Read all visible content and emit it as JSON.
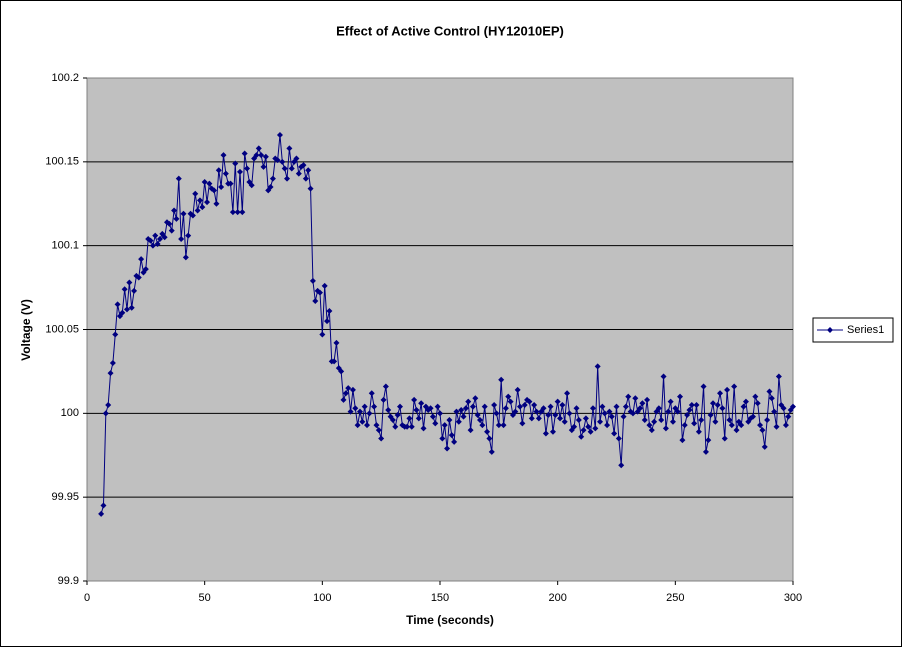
{
  "chart_data": {
    "type": "line",
    "title": "Effect of Active Control (HY12010EP)",
    "x_label": "Time (seconds)",
    "y_label": "Voltage (V)",
    "xlim": [
      0,
      300
    ],
    "xticks": [
      0,
      50,
      100,
      150,
      200,
      250,
      300
    ],
    "ylim": [
      99.9,
      100.2
    ],
    "yticks": [
      99.9,
      99.95,
      100,
      100.05,
      100.1,
      100.15,
      100.2
    ],
    "grid": true,
    "legend": "right",
    "x": [
      6,
      7,
      8,
      9,
      10,
      11,
      12,
      13,
      14,
      15,
      16,
      17,
      18,
      19,
      20,
      21,
      22,
      23,
      24,
      25,
      26,
      27,
      28,
      29,
      30,
      31,
      32,
      33,
      34,
      35,
      36,
      37,
      38,
      39,
      40,
      41,
      42,
      43,
      44,
      45,
      46,
      47,
      48,
      49,
      50,
      51,
      52,
      53,
      54,
      55,
      56,
      57,
      58,
      59,
      60,
      61,
      62,
      63,
      64,
      65,
      66,
      67,
      68,
      69,
      70,
      71,
      72,
      73,
      74,
      75,
      76,
      77,
      78,
      79,
      80,
      81,
      82,
      83,
      84,
      85,
      86,
      87,
      88,
      89,
      90,
      91,
      92,
      93,
      94,
      95,
      96,
      97,
      98,
      99,
      100,
      101,
      102,
      103,
      104,
      105,
      106,
      107,
      108,
      109,
      110,
      111,
      112,
      113,
      114,
      115,
      116,
      117,
      118,
      119,
      120,
      121,
      122,
      123,
      124,
      125,
      126,
      127,
      128,
      129,
      130,
      131,
      132,
      133,
      134,
      135,
      136,
      137,
      138,
      139,
      140,
      141,
      142,
      143,
      144,
      145,
      146,
      147,
      148,
      149,
      150,
      151,
      152,
      153,
      154,
      155,
      156,
      157,
      158,
      159,
      160,
      161,
      162,
      163,
      164,
      165,
      166,
      167,
      168,
      169,
      170,
      171,
      172,
      173,
      174,
      175,
      176,
      177,
      178,
      179,
      180,
      181,
      182,
      183,
      184,
      185,
      186,
      187,
      188,
      189,
      190,
      191,
      192,
      193,
      194,
      195,
      196,
      197,
      198,
      199,
      200,
      201,
      202,
      203,
      204,
      205,
      206,
      207,
      208,
      209,
      210,
      211,
      212,
      213,
      214,
      215,
      216,
      217,
      218,
      219,
      220,
      221,
      222,
      223,
      224,
      225,
      226,
      227,
      228,
      229,
      230,
      231,
      232,
      233,
      234,
      235,
      236,
      237,
      238,
      239,
      240,
      241,
      242,
      243,
      244,
      245,
      246,
      247,
      248,
      249,
      250,
      251,
      252,
      253,
      254,
      255,
      256,
      257,
      258,
      259,
      260,
      261,
      262,
      263,
      264,
      265,
      266,
      267,
      268,
      269,
      270,
      271,
      272,
      273,
      274,
      275,
      276,
      277,
      278,
      279,
      280,
      281,
      282,
      283,
      284,
      285,
      286,
      287,
      288,
      289,
      290,
      291,
      292,
      293,
      294,
      295,
      296,
      297,
      298,
      299,
      300
    ],
    "series": [
      {
        "name": "Series1",
        "color": "#000080",
        "values": [
          99.94,
          99.945,
          100.0,
          100.005,
          100.024,
          100.03,
          100.047,
          100.065,
          100.058,
          100.06,
          100.074,
          100.062,
          100.078,
          100.063,
          100.073,
          100.082,
          100.081,
          100.092,
          100.084,
          100.086,
          100.104,
          100.103,
          100.1,
          100.106,
          100.101,
          100.104,
          100.107,
          100.105,
          100.114,
          100.113,
          100.109,
          100.121,
          100.116,
          100.14,
          100.104,
          100.119,
          100.093,
          100.106,
          100.119,
          100.118,
          100.131,
          100.121,
          100.127,
          100.123,
          100.138,
          100.126,
          100.137,
          100.134,
          100.133,
          100.125,
          100.145,
          100.135,
          100.154,
          100.143,
          100.137,
          100.137,
          100.12,
          100.149,
          100.12,
          100.144,
          100.12,
          100.155,
          100.146,
          100.138,
          100.136,
          100.152,
          100.154,
          100.158,
          100.154,
          100.147,
          100.153,
          100.133,
          100.135,
          100.14,
          100.152,
          100.151,
          100.166,
          100.15,
          100.146,
          100.14,
          100.158,
          100.146,
          100.15,
          100.152,
          100.143,
          100.147,
          100.148,
          100.14,
          100.145,
          100.134,
          100.079,
          100.067,
          100.073,
          100.072,
          100.047,
          100.076,
          100.055,
          100.061,
          100.031,
          100.031,
          100.042,
          100.027,
          100.025,
          100.008,
          100.012,
          100.015,
          100.001,
          100.014,
          100.003,
          99.993,
          100.001,
          99.995,
          100.004,
          99.993,
          100.0,
          100.012,
          100.004,
          99.993,
          99.99,
          99.985,
          100.008,
          100.016,
          100.002,
          99.998,
          99.996,
          99.992,
          99.999,
          100.004,
          99.993,
          99.992,
          99.992,
          99.997,
          99.992,
          100.008,
          100.002,
          99.997,
          100.006,
          99.991,
          100.004,
          100.002,
          100.003,
          99.998,
          99.994,
          100.004,
          100.0,
          99.985,
          99.993,
          99.979,
          99.996,
          99.987,
          99.983,
          100.001,
          99.995,
          100.002,
          99.998,
          100.003,
          100.007,
          99.99,
          100.004,
          100.009,
          99.999,
          99.996,
          99.993,
          100.004,
          99.989,
          99.985,
          99.977,
          100.005,
          100.0,
          99.993,
          100.02,
          99.993,
          100.003,
          100.01,
          100.007,
          99.999,
          100.001,
          100.014,
          100.004,
          99.994,
          100.005,
          100.008,
          100.007,
          99.997,
          100.005,
          100.001,
          99.997,
          100.001,
          100.003,
          99.988,
          99.999,
          100.004,
          99.989,
          99.999,
          100.007,
          99.997,
          100.005,
          99.995,
          100.012,
          100.0,
          99.99,
          99.992,
          100.003,
          99.996,
          99.986,
          99.99,
          99.997,
          99.992,
          99.989,
          100.003,
          99.991,
          100.028,
          99.995,
          100.004,
          100.0,
          99.993,
          100.001,
          99.998,
          99.988,
          100.004,
          99.985,
          99.969,
          99.998,
          100.004,
          100.01,
          100.001,
          100.0,
          100.009,
          100.001,
          100.003,
          100.006,
          99.996,
          100.008,
          99.993,
          99.99,
          99.995,
          100.001,
          100.003,
          99.996,
          100.022,
          99.991,
          100.001,
          100.007,
          99.995,
          100.003,
          100.001,
          100.01,
          99.984,
          99.993,
          99.999,
          100.002,
          100.005,
          99.994,
          100.005,
          99.989,
          99.996,
          100.016,
          99.977,
          99.984,
          99.999,
          100.006,
          99.995,
          100.005,
          100.012,
          100.003,
          99.985,
          100.014,
          99.996,
          99.993,
          100.016,
          99.99,
          99.995,
          99.993,
          100.004,
          100.007,
          99.995,
          99.997,
          99.998,
          100.01,
          100.006,
          99.993,
          99.99,
          99.98,
          99.996,
          100.013,
          100.009,
          100.001,
          99.992,
          100.022,
          100.005,
          100.003,
          99.993,
          99.998,
          100.002,
          100.004
        ]
      }
    ]
  }
}
